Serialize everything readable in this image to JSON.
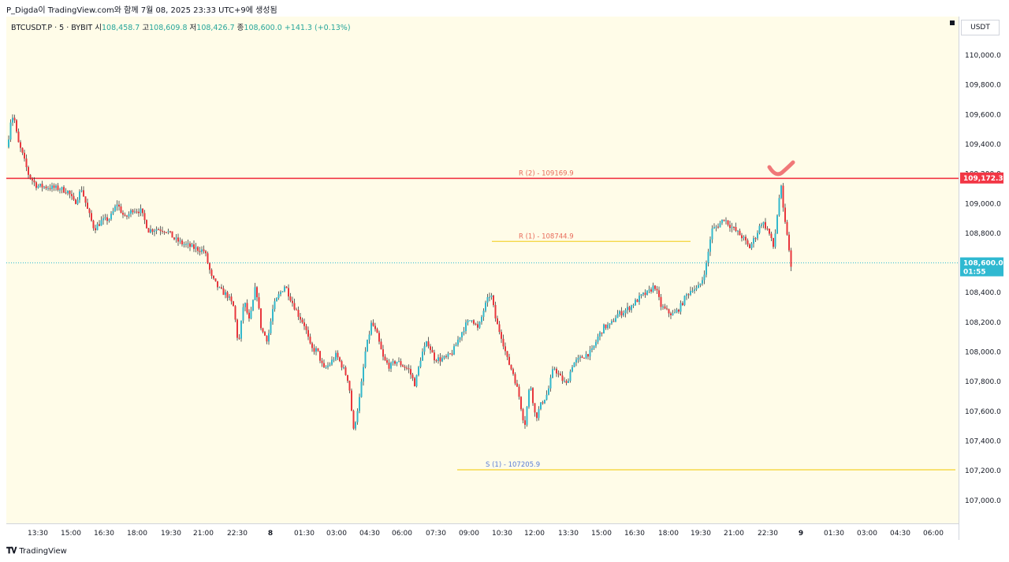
{
  "caption": "P_Digda이 TradingView.com와 함께 7월 08, 2025 23:33 UTC+9에 생성됨",
  "branding": "TradingView",
  "header": {
    "symbol": "BTCUSDT.P · 5 · BYBIT",
    "open_label": "시",
    "open": "108,458.7",
    "high_label": "고",
    "high": "108,609.8",
    "low_label": "저",
    "low": "108,426.7",
    "close_label": "종",
    "close": "108,600.0",
    "change": "+141.3 (+0.13%)"
  },
  "currency": "USDT",
  "colors": {
    "background": "#fffce8",
    "up": "#33b8cc",
    "down": "#e8363c",
    "resistance2": "#f23645",
    "level_yellow": "#f5d94a",
    "current_price_bg": "#2fb9d1",
    "resistance_price_bg": "#f23645",
    "checkmark": "#f07878"
  },
  "price_badges": {
    "resistance": "109,172.3",
    "current": "108,600.0",
    "countdown": "01:55"
  },
  "chart_data": {
    "type": "candlestick",
    "interval": "5",
    "y_ticks": [
      "110,000.0",
      "109,800.0",
      "109,600.0",
      "109,400.0",
      "109,200.0",
      "109,000.0",
      "108,800.0",
      "108,600.0",
      "108,400.0",
      "108,200.0",
      "108,000.0",
      "107,800.0",
      "107,600.0",
      "107,400.0",
      "107,200.0",
      "107,000.0"
    ],
    "y_tick_values": [
      110000,
      109800,
      109600,
      109400,
      109200,
      109000,
      108800,
      108600,
      108400,
      108200,
      108000,
      107800,
      107600,
      107400,
      107200,
      107000
    ],
    "x_ticks": [
      "13:30",
      "15:00",
      "16:30",
      "18:00",
      "19:30",
      "21:00",
      "22:30",
      "8",
      "01:30",
      "03:00",
      "04:30",
      "06:00",
      "07:30",
      "09:00",
      "10:30",
      "12:00",
      "13:30",
      "15:00",
      "16:30",
      "18:00",
      "19:30",
      "21:00",
      "22:30",
      "9",
      "01:30",
      "03:00",
      "04:30",
      "06:00"
    ],
    "levels": [
      {
        "label": "R (2) - 109169.9",
        "value": 109169.9,
        "color": "#f23645"
      },
      {
        "label": "R (1) - 108744.9",
        "value": 108744.9,
        "color": "#f5d94a"
      },
      {
        "label": "S (1) - 107205.9",
        "value": 107205.9,
        "color": "#f5d94a"
      }
    ],
    "current_price": 108600.0,
    "price_path": [
      [
        0,
        109380
      ],
      [
        4,
        109430
      ],
      [
        8,
        109600
      ],
      [
        12,
        109560
      ],
      [
        16,
        109420
      ],
      [
        22,
        109330
      ],
      [
        30,
        109190
      ],
      [
        40,
        109120
      ],
      [
        55,
        109110
      ],
      [
        70,
        109100
      ],
      [
        80,
        109080
      ],
      [
        88,
        109000
      ],
      [
        97,
        109100
      ],
      [
        105,
        108950
      ],
      [
        113,
        108830
      ],
      [
        122,
        108880
      ],
      [
        133,
        108900
      ],
      [
        142,
        109000
      ],
      [
        152,
        108900
      ],
      [
        162,
        108960
      ],
      [
        172,
        108950
      ],
      [
        182,
        108820
      ],
      [
        193,
        108830
      ],
      [
        205,
        108820
      ],
      [
        215,
        108760
      ],
      [
        225,
        108730
      ],
      [
        240,
        108700
      ],
      [
        253,
        108680
      ],
      [
        262,
        108500
      ],
      [
        272,
        108420
      ],
      [
        282,
        108380
      ],
      [
        290,
        108300
      ],
      [
        296,
        108040
      ],
      [
        303,
        108350
      ],
      [
        310,
        108200
      ],
      [
        318,
        108450
      ],
      [
        325,
        108150
      ],
      [
        333,
        108080
      ],
      [
        340,
        108300
      ],
      [
        347,
        108380
      ],
      [
        355,
        108450
      ],
      [
        363,
        108350
      ],
      [
        372,
        108250
      ],
      [
        380,
        108180
      ],
      [
        388,
        108020
      ],
      [
        396,
        108010
      ],
      [
        404,
        107880
      ],
      [
        412,
        107920
      ],
      [
        420,
        107980
      ],
      [
        428,
        107900
      ],
      [
        436,
        107800
      ],
      [
        442,
        107470
      ],
      [
        450,
        107700
      ],
      [
        457,
        108000
      ],
      [
        465,
        108200
      ],
      [
        472,
        108110
      ],
      [
        480,
        107950
      ],
      [
        488,
        107900
      ],
      [
        496,
        107940
      ],
      [
        504,
        107910
      ],
      [
        512,
        107880
      ],
      [
        520,
        107780
      ],
      [
        528,
        107980
      ],
      [
        536,
        108070
      ],
      [
        544,
        107960
      ],
      [
        552,
        107950
      ],
      [
        560,
        107960
      ],
      [
        568,
        108000
      ],
      [
        576,
        108100
      ],
      [
        584,
        108180
      ],
      [
        592,
        108230
      ],
      [
        600,
        108150
      ],
      [
        608,
        108300
      ],
      [
        616,
        108400
      ],
      [
        623,
        108200
      ],
      [
        630,
        108100
      ],
      [
        637,
        107950
      ],
      [
        645,
        107850
      ],
      [
        652,
        107700
      ],
      [
        659,
        107500
      ],
      [
        666,
        107800
      ],
      [
        673,
        107550
      ],
      [
        680,
        107650
      ],
      [
        688,
        107720
      ],
      [
        696,
        107900
      ],
      [
        704,
        107830
      ],
      [
        712,
        107780
      ],
      [
        720,
        107920
      ],
      [
        728,
        107950
      ],
      [
        736,
        107980
      ],
      [
        744,
        108000
      ],
      [
        752,
        108100
      ],
      [
        760,
        108170
      ],
      [
        768,
        108180
      ],
      [
        776,
        108250
      ],
      [
        784,
        108270
      ],
      [
        792,
        108300
      ],
      [
        800,
        108340
      ],
      [
        808,
        108380
      ],
      [
        816,
        108400
      ],
      [
        824,
        108450
      ],
      [
        832,
        108310
      ],
      [
        840,
        108270
      ],
      [
        848,
        108250
      ],
      [
        856,
        108300
      ],
      [
        864,
        108380
      ],
      [
        872,
        108430
      ],
      [
        878,
        108420
      ],
      [
        884,
        108480
      ],
      [
        890,
        108600
      ],
      [
        896,
        108820
      ],
      [
        904,
        108850
      ],
      [
        912,
        108900
      ],
      [
        920,
        108850
      ],
      [
        928,
        108810
      ],
      [
        936,
        108770
      ],
      [
        944,
        108700
      ],
      [
        952,
        108780
      ],
      [
        960,
        108880
      ],
      [
        968,
        108820
      ],
      [
        975,
        108700
      ],
      [
        980,
        108950
      ],
      [
        984,
        109130
      ],
      [
        988,
        108900
      ],
      [
        992,
        108800
      ],
      [
        996,
        108600
      ],
      [
        1000,
        108450
      ],
      [
        1004,
        108600
      ]
    ]
  }
}
